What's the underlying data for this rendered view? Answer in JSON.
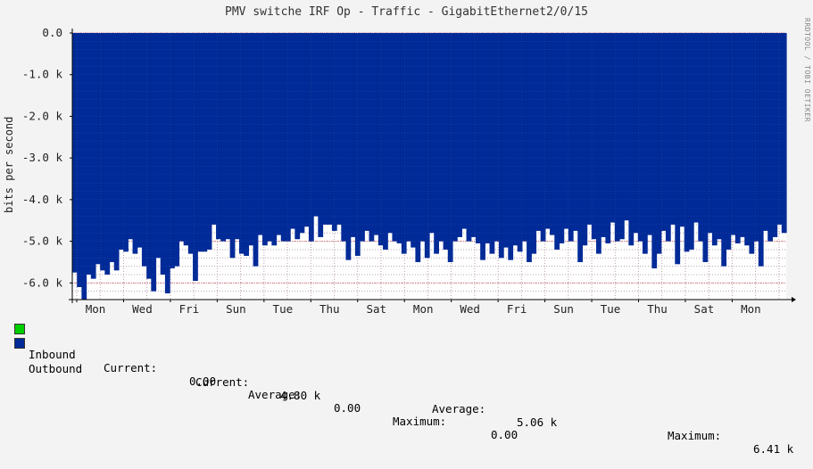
{
  "title": "PMV switche IRF Op - Traffic - GigabitEthernet2/0/15",
  "side_credit": "RRDTOOL / TOBI OETIKER",
  "colors": {
    "background": "#f3f3f3",
    "plot_background": "#ffffff",
    "outbound_fill": "#002a97",
    "inbound_fill": "#00cf00",
    "grid_minor": "#dcb4b4",
    "grid_major": "#e07070"
  },
  "legend": {
    "inbound": {
      "name": "Inbound",
      "current_label": "Current:",
      "current": "0.00",
      "average_label": "Average:",
      "average": "0.00",
      "maximum_label": "Maximum:",
      "maximum": "0.00"
    },
    "outbound": {
      "name": "Outbound",
      "current_label": "Current:",
      "current": "4.80 k",
      "average_label": "Average:",
      "average": "5.06 k",
      "maximum_label": "Maximum:",
      "maximum": "6.41 k"
    }
  },
  "chart_data": {
    "type": "area",
    "title": "PMV switche IRF Op - Traffic - GigabitEthernet2/0/15",
    "ylabel": "bits per second",
    "xlabel": "",
    "ylim": [
      -6.4,
      0
    ],
    "y_unit": "k",
    "yticks": [
      0,
      -1,
      -2,
      -3,
      -4,
      -5,
      -6
    ],
    "ytick_labels": [
      "0.0",
      "-1.0 k",
      "-2.0 k",
      "-3.0 k",
      "-4.0 k",
      "-5.0 k",
      "-6.0 k"
    ],
    "x_tick_labels": [
      "Mon",
      "Wed",
      "Fri",
      "Sun",
      "Tue",
      "Thu",
      "Sat",
      "Mon",
      "Wed",
      "Fri",
      "Sun",
      "Tue",
      "Thu",
      "Sat",
      "Mon"
    ],
    "grid": true,
    "series": [
      {
        "name": "Outbound",
        "values": [
          -5.75,
          -6.1,
          -6.41,
          -5.8,
          -5.9,
          -5.55,
          -5.7,
          -5.8,
          -5.5,
          -5.7,
          -5.2,
          -5.25,
          -4.95,
          -5.3,
          -5.15,
          -5.6,
          -5.9,
          -6.2,
          -5.4,
          -5.8,
          -6.25,
          -5.65,
          -5.6,
          -5.0,
          -5.1,
          -5.3,
          -5.95,
          -5.25,
          -5.25,
          -5.2,
          -4.6,
          -4.95,
          -5.0,
          -4.95,
          -5.4,
          -4.95,
          -5.3,
          -5.35,
          -5.1,
          -5.6,
          -4.85,
          -5.1,
          -5.0,
          -5.1,
          -4.85,
          -5.0,
          -5.0,
          -4.7,
          -4.95,
          -4.8,
          -4.65,
          -5.0,
          -4.4,
          -4.9,
          -4.6,
          -4.6,
          -4.75,
          -4.6,
          -5.0,
          -5.45,
          -4.9,
          -5.35,
          -5.0,
          -4.75,
          -5.0,
          -4.85,
          -5.1,
          -5.2,
          -4.8,
          -5.0,
          -5.05,
          -5.3,
          -5.0,
          -5.15,
          -5.5,
          -5.0,
          -5.4,
          -4.8,
          -5.3,
          -5.0,
          -5.2,
          -5.5,
          -5.0,
          -4.9,
          -4.7,
          -5.0,
          -4.9,
          -5.05,
          -5.45,
          -5.05,
          -5.3,
          -5.0,
          -5.4,
          -5.15,
          -5.45,
          -5.1,
          -5.25,
          -5.0,
          -5.5,
          -5.3,
          -4.75,
          -5.0,
          -4.7,
          -4.85,
          -5.2,
          -5.05,
          -4.7,
          -5.0,
          -4.75,
          -5.5,
          -5.1,
          -4.6,
          -4.95,
          -5.3,
          -4.9,
          -5.05,
          -4.55,
          -5.0,
          -4.95,
          -4.5,
          -5.1,
          -4.8,
          -5.0,
          -5.3,
          -4.85,
          -5.65,
          -5.3,
          -4.75,
          -5.0,
          -4.6,
          -5.55,
          -4.65,
          -5.25,
          -5.2,
          -4.55,
          -5.0,
          -5.5,
          -4.8,
          -5.1,
          -4.95,
          -5.6,
          -5.2,
          -4.85,
          -5.05,
          -4.9,
          -5.1,
          -5.3,
          -5.0,
          -5.6,
          -4.75,
          -5.0,
          -4.9,
          -4.6,
          -4.8
        ]
      },
      {
        "name": "Inbound",
        "values": [
          0.0
        ]
      }
    ]
  }
}
